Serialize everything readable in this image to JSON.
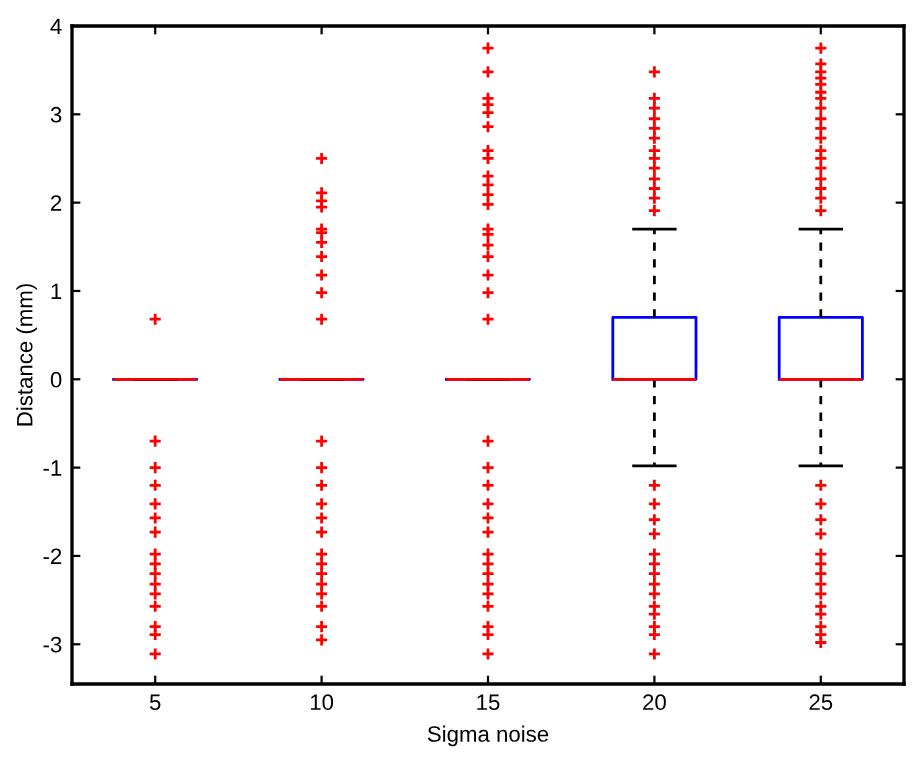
{
  "chart_data": {
    "type": "box",
    "xlabel": "Sigma noise",
    "ylabel": "Distance (mm)",
    "categories": [
      "5",
      "10",
      "15",
      "20",
      "25"
    ],
    "ylim": [
      -3.45,
      4
    ],
    "yticks": [
      -3,
      -2,
      -1,
      0,
      1,
      2,
      3,
      4
    ],
    "grid": false,
    "legend": false,
    "marker": "cross",
    "series": [
      {
        "color": "#0000ff",
        "boxes": [
          {
            "low": 0,
            "q1": 0,
            "median": 0,
            "q3": 0,
            "high": 0,
            "outliers": [
              0.68,
              -0.7,
              -1.0,
              -1.2,
              -1.41,
              -1.57,
              -1.73,
              -1.98,
              -2.09,
              -2.2,
              -2.32,
              -2.43,
              -2.57,
              -2.8,
              -2.89,
              -3.11
            ]
          },
          {
            "low": 0,
            "q1": 0,
            "median": 0,
            "q3": 0,
            "high": 0,
            "outliers": [
              2.5,
              2.11,
              2.02,
              1.95,
              1.7,
              1.66,
              1.55,
              1.39,
              1.18,
              0.98,
              0.68,
              -0.7,
              -1.0,
              -1.2,
              -1.41,
              -1.57,
              -1.73,
              -1.98,
              -2.09,
              -2.2,
              -2.32,
              -2.43,
              -2.57,
              -2.8,
              -2.95
            ]
          },
          {
            "low": 0,
            "q1": 0,
            "median": 0,
            "q3": 0,
            "high": 0,
            "outliers": [
              3.75,
              3.48,
              3.18,
              3.11,
              3.02,
              2.86,
              2.59,
              2.5,
              2.3,
              2.2,
              2.09,
              1.98,
              1.7,
              1.64,
              1.52,
              1.39,
              1.18,
              0.98,
              0.68,
              -0.7,
              -1.0,
              -1.2,
              -1.41,
              -1.57,
              -1.73,
              -1.98,
              -2.09,
              -2.2,
              -2.32,
              -2.43,
              -2.57,
              -2.8,
              -2.89,
              -3.11
            ]
          },
          {
            "low": -0.98,
            "q1": 0,
            "median": 0,
            "q3": 0.7,
            "high": 1.7,
            "outliers": [
              3.48,
              3.18,
              3.07,
              2.95,
              2.84,
              2.73,
              2.59,
              2.5,
              2.39,
              2.27,
              2.16,
              2.05,
              1.91,
              -1.2,
              -1.41,
              -1.59,
              -1.75,
              -1.98,
              -2.09,
              -2.2,
              -2.32,
              -2.43,
              -2.57,
              -2.66,
              -2.8,
              -2.89,
              -3.11
            ]
          },
          {
            "low": -0.98,
            "q1": 0,
            "median": 0,
            "q3": 0.7,
            "high": 1.7,
            "outliers": [
              3.75,
              3.57,
              3.48,
              3.41,
              3.34,
              3.25,
              3.18,
              3.07,
              2.95,
              2.84,
              2.73,
              2.59,
              2.5,
              2.39,
              2.27,
              2.16,
              2.05,
              1.91,
              -1.2,
              -1.41,
              -1.59,
              -1.75,
              -1.98,
              -2.09,
              -2.2,
              -2.32,
              -2.43,
              -2.57,
              -2.66,
              -2.8,
              -2.89,
              -2.98
            ]
          }
        ]
      }
    ]
  }
}
